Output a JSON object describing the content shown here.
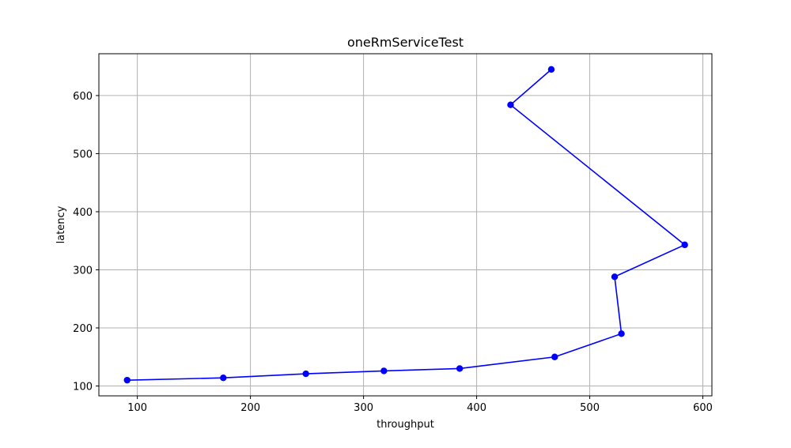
{
  "chart_data": {
    "type": "line",
    "title": "oneRmServiceTest",
    "xlabel": "throughput",
    "ylabel": "latency",
    "xlim": [
      66,
      608
    ],
    "ylim": [
      83,
      672
    ],
    "xticks": [
      100,
      200,
      300,
      400,
      500,
      600
    ],
    "yticks": [
      100,
      200,
      300,
      400,
      500,
      600
    ],
    "grid": true,
    "series": [
      {
        "color": "#0000ff",
        "marker": "circle",
        "points": [
          {
            "x": 91,
            "y": 110
          },
          {
            "x": 176,
            "y": 114
          },
          {
            "x": 249,
            "y": 121
          },
          {
            "x": 318,
            "y": 126
          },
          {
            "x": 385,
            "y": 130
          },
          {
            "x": 469,
            "y": 150
          },
          {
            "x": 528,
            "y": 190
          },
          {
            "x": 522,
            "y": 288
          },
          {
            "x": 584,
            "y": 343
          },
          {
            "x": 430,
            "y": 584
          },
          {
            "x": 466,
            "y": 645
          }
        ]
      }
    ]
  }
}
